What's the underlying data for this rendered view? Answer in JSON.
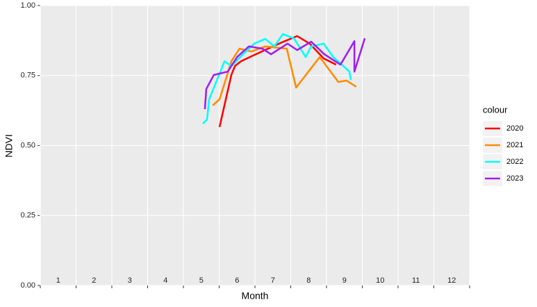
{
  "chart_data": {
    "type": "line",
    "x_label": "Month",
    "y_label": "NDVI",
    "xlim": [
      1,
      13
    ],
    "xticks": [
      1,
      2,
      3,
      4,
      5,
      6,
      7,
      8,
      9,
      10,
      11,
      12,
      13
    ],
    "month_labels": [
      "1",
      "2",
      "3",
      "4",
      "5",
      "6",
      "7",
      "8",
      "9",
      "10",
      "11",
      "12"
    ],
    "ylim": [
      0,
      1
    ],
    "yticks": [
      {
        "value": 0,
        "label": "0.00"
      },
      {
        "value": 0.25,
        "label": "0.25"
      },
      {
        "value": 0.5,
        "label": "0.50"
      },
      {
        "value": 0.75,
        "label": "0.75"
      },
      {
        "value": 1,
        "label": "1.00"
      }
    ],
    "grid": true,
    "legend_title": "colour",
    "legend_position": "right",
    "series": [
      {
        "name": "2020",
        "color": "#ff0000",
        "x": [
          6.01,
          6.34,
          6.44,
          6.61,
          6.94,
          7.45,
          7.8,
          8.18,
          8.53,
          8.92,
          9.27
        ],
        "values": [
          0.566,
          0.752,
          0.784,
          0.801,
          0.821,
          0.851,
          0.871,
          0.891,
          0.864,
          0.811,
          0.789
        ]
      },
      {
        "name": "2021",
        "color": "#ff8c00",
        "x": [
          5.82,
          6.01,
          6.17,
          6.34,
          6.57,
          6.9,
          7.29,
          7.89,
          8.15,
          8.81,
          9.33,
          9.56,
          9.83
        ],
        "values": [
          0.643,
          0.665,
          0.73,
          0.801,
          0.846,
          0.836,
          0.854,
          0.846,
          0.707,
          0.816,
          0.727,
          0.732,
          0.71
        ]
      },
      {
        "name": "2022",
        "color": "#00ffff",
        "x": [
          5.54,
          5.66,
          5.72,
          6.15,
          6.34,
          6.67,
          6.98,
          7.29,
          7.54,
          7.78,
          8.09,
          8.42,
          8.57,
          8.92,
          9.19,
          9.64,
          9.68
        ],
        "values": [
          0.578,
          0.593,
          0.665,
          0.801,
          0.784,
          0.826,
          0.864,
          0.881,
          0.854,
          0.898,
          0.883,
          0.816,
          0.854,
          0.864,
          0.816,
          0.764,
          0.734
        ]
      },
      {
        "name": "2023",
        "color": "#a020f0",
        "x": [
          5.6,
          5.64,
          5.85,
          6.24,
          6.5,
          6.83,
          7.21,
          7.45,
          7.91,
          8.18,
          8.57,
          8.94,
          9.39,
          9.78,
          9.78,
          10.07
        ],
        "values": [
          0.63,
          0.702,
          0.752,
          0.764,
          0.816,
          0.854,
          0.846,
          0.826,
          0.864,
          0.841,
          0.871,
          0.826,
          0.789,
          0.873,
          0.764,
          0.883
        ]
      }
    ]
  }
}
